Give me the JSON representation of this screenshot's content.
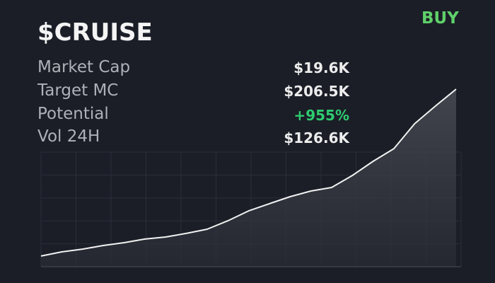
{
  "header": {
    "title": "$CRUISE",
    "action": "BUY"
  },
  "stats": [
    {
      "label": "Market Cap",
      "value": "$19.6K"
    },
    {
      "label": "Target MC",
      "value": "$206.5K"
    },
    {
      "label": "Potential",
      "value": "+955%"
    },
    {
      "label": "Vol 24H",
      "value": "$126.6K"
    }
  ],
  "chart_data": {
    "type": "area",
    "color": "#f2f2f2",
    "grid": true,
    "ylim": [
      0,
      160
    ],
    "values": [
      9.6,
      13.4,
      15.9,
      19.1,
      21.7,
      24.9,
      26.8,
      30,
      33.8,
      41.4,
      50.3,
      56.8,
      63.1,
      68.2,
      71.4,
      82.2,
      95,
      106.4,
      128.8,
      144.7,
      160
    ]
  }
}
